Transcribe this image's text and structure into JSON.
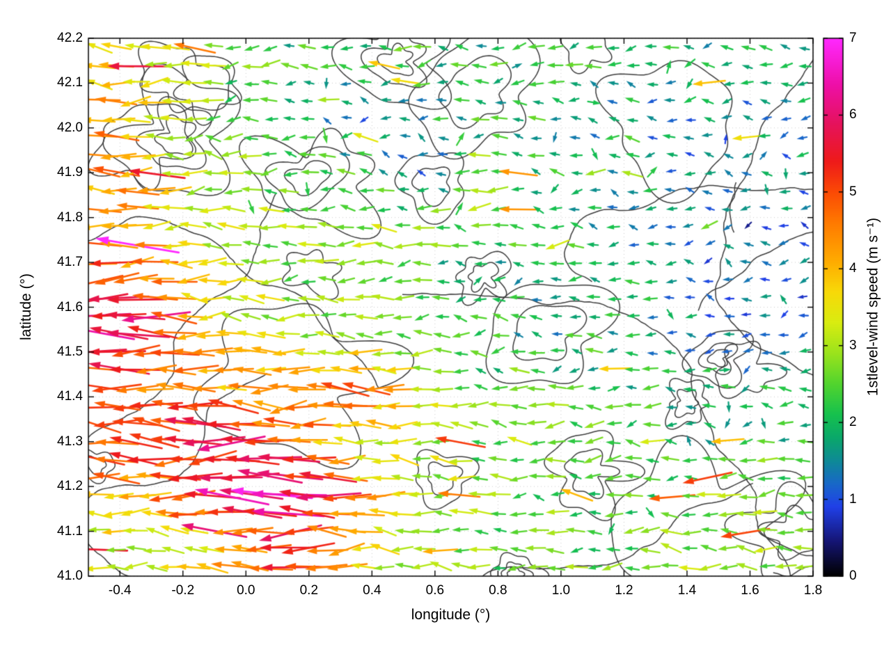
{
  "chart_data": {
    "type": "quiver",
    "title": "",
    "xlabel": "longitude (°)",
    "ylabel": "latitude (°)",
    "xlim": [
      -0.5,
      1.8
    ],
    "ylim": [
      41.0,
      42.2
    ],
    "xticks": {
      "values": [
        -0.4,
        -0.2,
        0.0,
        0.2,
        0.4,
        0.6,
        0.8,
        1.0,
        1.2,
        1.4,
        1.6,
        1.8
      ],
      "labels": [
        "-0.4",
        "-0.2",
        "0.0",
        "0.2",
        "0.4",
        "0.6",
        "0.8",
        "1.0",
        "1.2",
        "1.4",
        "1.6",
        "1.8"
      ]
    },
    "yticks": {
      "values": [
        41.0,
        41.1,
        41.2,
        41.3,
        41.4,
        41.5,
        41.6,
        41.7,
        41.8,
        41.9,
        42.0,
        42.1,
        42.2
      ],
      "labels": [
        "41.0",
        "41.1",
        "41.2",
        "41.3",
        "41.4",
        "41.5",
        "41.6",
        "41.7",
        "41.8",
        "41.9",
        "42.0",
        "42.1",
        "42.2"
      ]
    },
    "grid": {
      "show": true,
      "style": "dotted",
      "color": "rgba(0,0,0,0.22)"
    },
    "colorbar": {
      "label": "1stlevel-wind speed (m s⁻¹)",
      "min": 0,
      "max": 7,
      "ticks": [
        0,
        1,
        2,
        3,
        4,
        5,
        6,
        7
      ],
      "tick_labels": [
        "0",
        "1",
        "2",
        "3",
        "4",
        "5",
        "6",
        "7"
      ],
      "stops": [
        [
          0.0,
          "#000000"
        ],
        [
          0.45,
          "#151575"
        ],
        [
          0.9,
          "#2040e8"
        ],
        [
          1.2,
          "#1868c8"
        ],
        [
          1.5,
          "#0e8a96"
        ],
        [
          1.8,
          "#0aa86a"
        ],
        [
          2.1,
          "#16c14e"
        ],
        [
          2.5,
          "#52d42e"
        ],
        [
          2.9,
          "#9be31c"
        ],
        [
          3.3,
          "#d9ec10"
        ],
        [
          3.7,
          "#f8d908"
        ],
        [
          4.1,
          "#ffab00"
        ],
        [
          4.6,
          "#ff7a00"
        ],
        [
          5.0,
          "#fb4a05"
        ],
        [
          5.4,
          "#ee1a1a"
        ],
        [
          5.9,
          "#e5125e"
        ],
        [
          6.4,
          "#ee0fa8"
        ],
        [
          7.0,
          "#ff28ff"
        ]
      ]
    },
    "vector_field": {
      "description": "First-level wind vectors, predominantly blowing toward the west; arrow length and color scale with wind speed. Strongest winds (5-7 m/s, red/magenta) in the southwest quadrant; weakest (0.5-1.5 m/s, blue/teal) in the north-center and east.",
      "grid_nx": 38,
      "grid_ny": 30,
      "base_direction_deg": 180,
      "speed_jitter": 0.6,
      "seed": 20240501,
      "speed_grid": {
        "lon_centers": [
          -0.404,
          -0.212,
          -0.021,
          0.171,
          0.363,
          0.554,
          0.746,
          0.938,
          1.129,
          1.321,
          1.513,
          1.704
        ],
        "lat_centers": [
          42.14,
          42.02,
          41.9,
          41.78,
          41.66,
          41.54,
          41.42,
          41.3,
          41.18,
          41.06
        ],
        "speeds": [
          [
            3.8,
            3.2,
            2.4,
            2.2,
            2.0,
            2.2,
            2.0,
            2.2,
            2.0,
            1.8,
            2.0,
            1.8
          ],
          [
            4.2,
            3.0,
            2.4,
            2.2,
            1.3,
            1.6,
            2.2,
            2.0,
            1.6,
            1.5,
            1.6,
            1.4
          ],
          [
            4.4,
            3.4,
            2.6,
            2.6,
            2.2,
            1.3,
            2.4,
            2.2,
            1.8,
            1.6,
            1.3,
            1.6
          ],
          [
            4.2,
            3.6,
            3.0,
            2.8,
            3.0,
            2.6,
            2.8,
            2.4,
            1.8,
            1.4,
            1.1,
            1.2
          ],
          [
            5.2,
            4.2,
            3.2,
            2.8,
            2.6,
            2.2,
            1.7,
            1.8,
            2.2,
            1.6,
            1.1,
            1.2
          ],
          [
            5.8,
            4.4,
            3.4,
            3.0,
            2.8,
            2.6,
            2.2,
            1.8,
            2.0,
            1.6,
            1.3,
            1.5
          ],
          [
            5.0,
            4.6,
            4.0,
            4.4,
            5.2,
            3.2,
            2.6,
            2.4,
            2.2,
            2.0,
            1.8,
            2.0
          ],
          [
            5.2,
            5.6,
            5.8,
            4.6,
            3.6,
            3.0,
            2.7,
            2.8,
            2.4,
            2.2,
            2.0,
            2.2
          ],
          [
            4.0,
            4.6,
            6.2,
            6.4,
            4.2,
            3.4,
            2.8,
            2.6,
            2.4,
            2.6,
            2.8,
            2.8
          ],
          [
            3.2,
            3.4,
            4.2,
            5.6,
            3.6,
            3.0,
            2.6,
            2.4,
            2.6,
            2.8,
            3.0,
            2.9
          ]
        ]
      }
    },
    "contours": {
      "description": "Dark-gray terrain/analysis contour lines overlaid on the vector field",
      "color": "#3c3c3c",
      "line_width": 1.5,
      "n_loops": 24,
      "n_open": 9,
      "seed": 77
    }
  },
  "figure": {
    "background": "#ffffff",
    "axis_color": "#000000"
  }
}
